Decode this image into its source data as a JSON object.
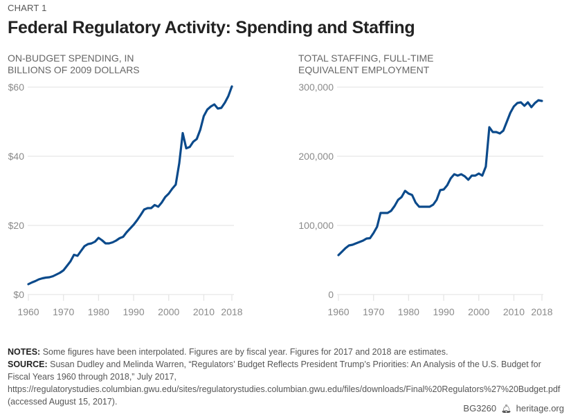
{
  "header": {
    "kicker": "CHART 1",
    "title": "Federal Regulatory Activity: Spending and Staffing"
  },
  "colors": {
    "line": "#0b4a8b",
    "grid": "#e6e6e6",
    "tick_text": "#8a8a8a"
  },
  "chart_data": [
    {
      "type": "line",
      "title": "ON-BUDGET SPENDING, IN BILLIONS OF 2009 DOLLARS",
      "title_lines": [
        "ON-BUDGET SPENDING, IN",
        "BILLIONS OF 2009 DOLLARS"
      ],
      "xlabel": "",
      "ylabel": "",
      "xlim": [
        1960,
        2018
      ],
      "ylim": [
        0,
        60
      ],
      "xticks": [
        1960,
        1970,
        1980,
        1990,
        2000,
        2010,
        2018
      ],
      "xtick_labels": [
        "1960",
        "1970",
        "1980",
        "1990",
        "2000",
        "2010",
        "2018"
      ],
      "yticks": [
        0,
        20,
        40,
        60
      ],
      "ytick_labels": [
        "$0",
        "$20",
        "$40",
        "$60"
      ],
      "grid": true,
      "series": [
        {
          "name": "On-budget spending",
          "x": [
            1960,
            1961,
            1962,
            1963,
            1964,
            1965,
            1966,
            1967,
            1968,
            1969,
            1970,
            1971,
            1972,
            1973,
            1974,
            1975,
            1976,
            1977,
            1978,
            1979,
            1980,
            1981,
            1982,
            1983,
            1984,
            1985,
            1986,
            1987,
            1988,
            1989,
            1990,
            1991,
            1992,
            1993,
            1994,
            1995,
            1996,
            1997,
            1998,
            1999,
            2000,
            2001,
            2002,
            2003,
            2004,
            2005,
            2006,
            2007,
            2008,
            2009,
            2010,
            2011,
            2012,
            2013,
            2014,
            2015,
            2016,
            2017,
            2018
          ],
          "values": [
            3.0,
            3.5,
            3.9,
            4.4,
            4.7,
            4.9,
            5.0,
            5.3,
            5.8,
            6.3,
            7.0,
            8.3,
            9.6,
            11.5,
            11.2,
            12.6,
            14.0,
            14.6,
            14.8,
            15.3,
            16.4,
            15.7,
            14.8,
            14.8,
            15.1,
            15.6,
            16.3,
            16.7,
            18.0,
            19.1,
            20.2,
            21.5,
            23.0,
            24.6,
            25.0,
            25.0,
            25.9,
            25.4,
            26.6,
            28.2,
            29.2,
            30.6,
            31.8,
            38.0,
            46.7,
            42.3,
            42.7,
            44.2,
            45.0,
            47.7,
            51.6,
            53.5,
            54.4,
            55.0,
            53.8,
            54.0,
            55.5,
            57.4,
            60.2
          ]
        }
      ]
    },
    {
      "type": "line",
      "title": "TOTAL STAFFING, FULL-TIME EQUIVALENT EMPLOYMENT",
      "title_lines": [
        "TOTAL STAFFING, FULL-TIME",
        "EQUIVALENT EMPLOYMENT"
      ],
      "xlabel": "",
      "ylabel": "",
      "xlim": [
        1960,
        2018
      ],
      "ylim": [
        0,
        300000
      ],
      "xticks": [
        1960,
        1970,
        1980,
        1990,
        2000,
        2010,
        2018
      ],
      "xtick_labels": [
        "1960",
        "1970",
        "1980",
        "1990",
        "2000",
        "2010",
        "2018"
      ],
      "yticks": [
        0,
        100000,
        200000,
        300000
      ],
      "ytick_labels": [
        "0",
        "100,000",
        "200,000",
        "300,000"
      ],
      "grid": true,
      "series": [
        {
          "name": "Total staffing (FTE)",
          "x": [
            1960,
            1961,
            1962,
            1963,
            1964,
            1965,
            1966,
            1967,
            1968,
            1969,
            1970,
            1971,
            1972,
            1973,
            1974,
            1975,
            1976,
            1977,
            1978,
            1979,
            1980,
            1981,
            1982,
            1983,
            1984,
            1985,
            1986,
            1987,
            1988,
            1989,
            1990,
            1991,
            1992,
            1993,
            1994,
            1995,
            1996,
            1997,
            1998,
            1999,
            2000,
            2001,
            2002,
            2003,
            2004,
            2005,
            2006,
            2007,
            2008,
            2009,
            2010,
            2011,
            2012,
            2013,
            2014,
            2015,
            2016,
            2017,
            2018
          ],
          "values": [
            57000,
            62000,
            67000,
            71000,
            72000,
            74000,
            76000,
            78000,
            81000,
            81500,
            89000,
            98000,
            118000,
            118000,
            118000,
            121000,
            128000,
            137000,
            141000,
            150000,
            146000,
            144000,
            133000,
            127000,
            127000,
            127000,
            127000,
            130000,
            137000,
            151000,
            152000,
            158000,
            168000,
            174000,
            172000,
            174000,
            171000,
            166000,
            172000,
            172000,
            175000,
            172000,
            185000,
            242000,
            235000,
            235000,
            233000,
            237000,
            250000,
            263000,
            272000,
            277000,
            278000,
            273000,
            278000,
            271000,
            277000,
            281000,
            280000
          ]
        }
      ]
    }
  ],
  "notes": {
    "notes_label": "NOTES:",
    "notes_text": " Some figures have been interpolated. Figures are by fiscal year. Figures for 2017 and 2018 are estimates.",
    "source_label": "SOURCE:",
    "source_text": " Susan Dudley and Melinda Warren, “Regulators’ Budget Reflects President Trump’s Priorities: An Analysis of the U.S. Budget for Fiscal Years 1960 through 2018,” July 2017, https://regulatorystudies.columbian.gwu.edu/sites/regulatorystudies.columbian.gwu.edu/files/downloads/Final%20Regulators%27%20Budget.pdf (accessed August 15, 2017)."
  },
  "footer": {
    "code": "BG3260",
    "logo_icon": "liberty-bell-icon",
    "site": "heritage.org"
  }
}
